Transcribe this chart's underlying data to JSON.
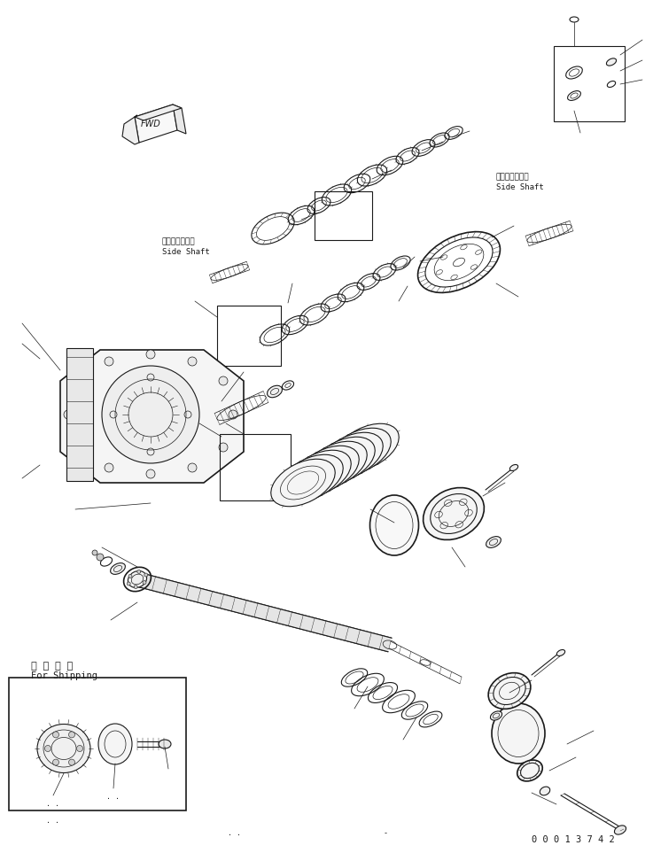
{
  "background_color": "#ffffff",
  "line_color": "#1a1a1a",
  "fig_width": 7.37,
  "fig_height": 9.63,
  "dpi": 100,
  "label_bottom_right": "0 0 0 1 3 7 4 2",
  "text_fwd": "FWD",
  "text_side_shaft_left_jp": "サイドシャフト",
  "text_side_shaft_left_en": "Side Shaft",
  "text_side_shaft_right_jp": "サイドシャフト",
  "text_side_shaft_right_en": "Side Shaft",
  "text_shipping_jp": "運 搜 部 品",
  "text_shipping_en": "For Shipping"
}
